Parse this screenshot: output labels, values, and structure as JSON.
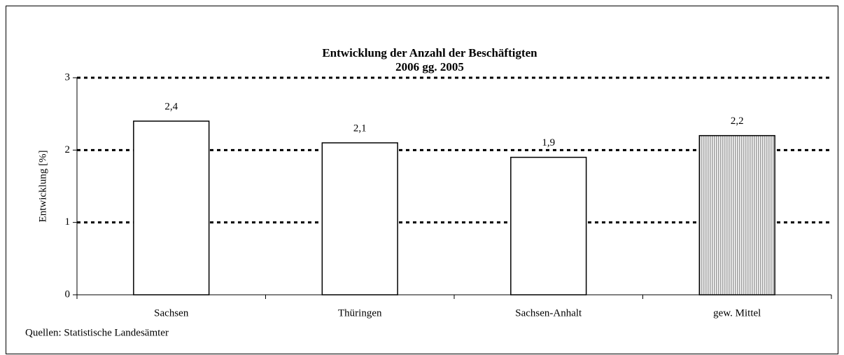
{
  "chart_data": {
    "type": "bar",
    "title": [
      "Entwicklung der Anzahl der Beschäftigten",
      "2006 gg. 2005"
    ],
    "y_label": "Entwicklung [%]",
    "note": "Quellen: Statistische Landesämter",
    "categories": [
      "Sachsen",
      "Thüringen",
      "Sachsen-Anhalt",
      "gew. Mittel"
    ],
    "values": [
      2.4,
      2.1,
      1.9,
      2.2
    ],
    "value_labels": [
      "2,4",
      "2,1",
      "1,9",
      "2,2"
    ],
    "colors": [
      "#ffffff",
      "#ffffff",
      "#ffffff",
      "#a0a0a0"
    ],
    "hatch": [
      false,
      false,
      false,
      true
    ],
    "ylim": [
      0,
      3
    ],
    "yticks": [
      0,
      1,
      2,
      3
    ],
    "grid": true
  }
}
